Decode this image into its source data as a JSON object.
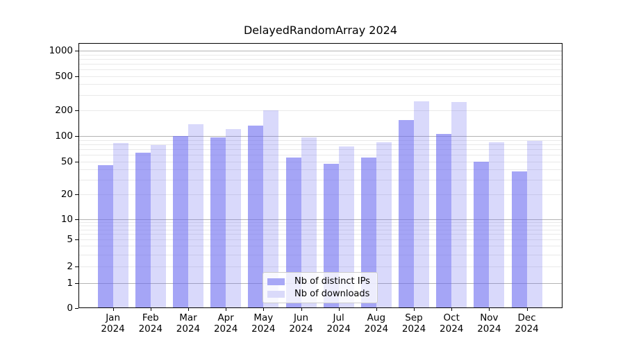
{
  "figure": {
    "title": "DelayedRandomArray 2024"
  },
  "chart_data": {
    "type": "bar",
    "title": "DelayedRandomArray 2024",
    "x_axis": {
      "months": [
        "Jan",
        "Feb",
        "Mar",
        "Apr",
        "May",
        "Jun",
        "Jul",
        "Aug",
        "Sep",
        "Oct",
        "Nov",
        "Dec"
      ],
      "year": "2024"
    },
    "series": [
      {
        "id": "distinct_ips",
        "name": "Nb of distinct IPs",
        "swatch_color": "#a8a8f6",
        "bar_color": "rgba(105,105,240,0.6)",
        "values": [
          45,
          63,
          100,
          97,
          132,
          55,
          47,
          56,
          152,
          106,
          50,
          38
        ]
      },
      {
        "id": "downloads",
        "name": "Nb of downloads",
        "swatch_color": "#dadafa",
        "bar_color": "rgba(105,105,240,0.25)",
        "values": [
          82,
          78,
          138,
          121,
          200,
          97,
          75,
          84,
          253,
          248,
          84,
          87
        ]
      }
    ],
    "y_axis": {
      "scale": "log-with-zero-baseline",
      "tick_values": [
        0,
        1,
        2,
        5,
        10,
        20,
        50,
        100,
        200,
        500,
        1000
      ],
      "tick_labels": [
        "0",
        "1",
        "2",
        "5",
        "10",
        "20",
        "50",
        "100",
        "200",
        "500",
        "1000"
      ],
      "major_gridlines": [
        1,
        10,
        100,
        1000
      ],
      "minor_gridlines": [
        2,
        3,
        4,
        5,
        6,
        7,
        8,
        9,
        20,
        30,
        40,
        50,
        60,
        70,
        80,
        90,
        200,
        300,
        400,
        500,
        600,
        700,
        800,
        900
      ],
      "range": [
        0,
        1000
      ]
    },
    "legend": {
      "position": "lower center",
      "entries": [
        "Nb of distinct IPs",
        "Nb of downloads"
      ]
    },
    "colors": {
      "grid_major": "#b3b3b3",
      "grid_minor": "#e9e9e9",
      "axis": "#000000",
      "background": "#ffffff"
    }
  }
}
